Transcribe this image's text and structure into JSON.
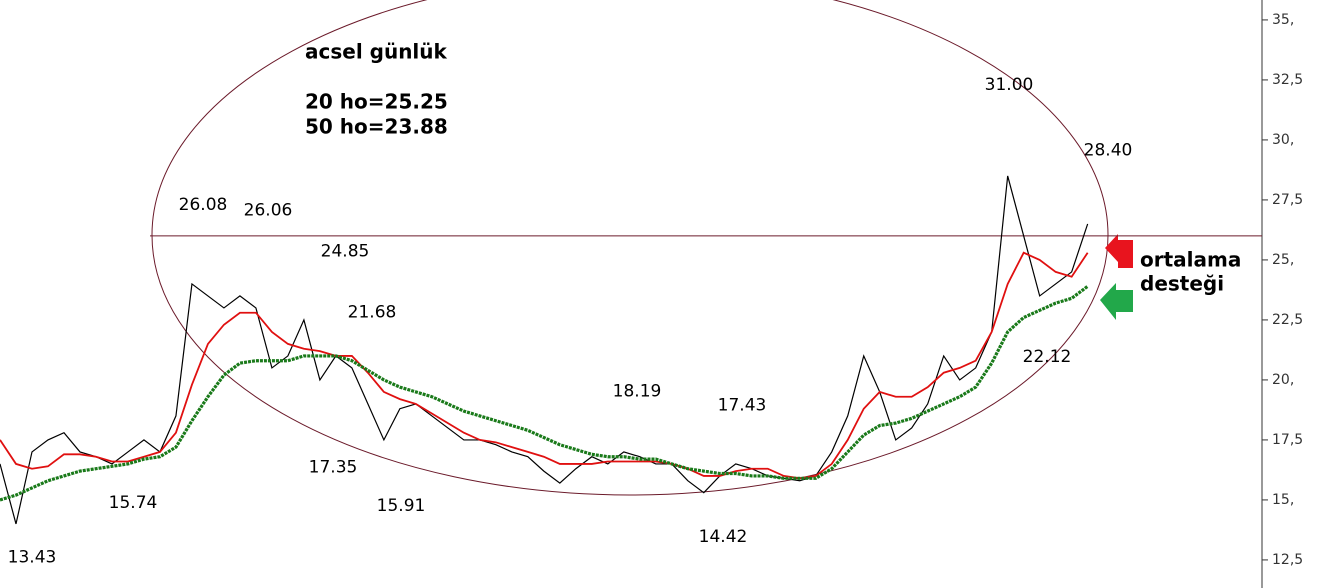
{
  "chart_data": {
    "type": "line",
    "title": "acsel günlük",
    "legend_texts": [
      "20 ho=25.25",
      "50 ho=23.88"
    ],
    "side_note": [
      "ortalama",
      "desteği"
    ],
    "x": [
      0,
      1,
      2,
      3,
      4,
      5,
      6,
      7,
      8,
      9,
      10,
      11,
      12,
      13,
      14,
      15,
      16,
      17,
      18,
      19,
      20,
      21,
      22,
      23,
      24,
      25,
      26,
      27,
      28,
      29,
      30,
      31,
      32,
      33,
      34,
      35,
      36,
      37,
      38,
      39,
      40,
      41,
      42,
      43,
      44,
      45,
      46,
      47,
      48,
      49,
      50,
      51,
      52,
      53,
      54,
      55,
      56,
      57,
      58,
      59,
      60,
      61,
      62,
      63,
      64,
      65,
      66,
      67,
      68
    ],
    "xlim": [
      0,
      78.9
    ],
    "ylim": [
      11.33,
      35.83
    ],
    "yticks": [
      {
        "value": 12.5,
        "label": "12,5"
      },
      {
        "value": 15,
        "label": "15,"
      },
      {
        "value": 17.5,
        "label": "17,5"
      },
      {
        "value": 20,
        "label": "20,"
      },
      {
        "value": 22.5,
        "label": "22,5"
      },
      {
        "value": 25,
        "label": "25,"
      },
      {
        "value": 27.5,
        "label": "27,5"
      },
      {
        "value": 30,
        "label": "30,"
      },
      {
        "value": 32.5,
        "label": "32,5"
      },
      {
        "value": 35,
        "label": "35,"
      }
    ],
    "series": [
      {
        "color": "#000000",
        "values": [
          16.5,
          14.0,
          17.0,
          17.5,
          17.8,
          17.0,
          16.8,
          16.5,
          17.0,
          17.5,
          17.0,
          18.5,
          24.0,
          23.5,
          23.0,
          23.5,
          23.0,
          20.5,
          21.0,
          22.5,
          20.0,
          21.0,
          20.5,
          19.0,
          17.5,
          18.8,
          19.0,
          18.5,
          18.0,
          17.5,
          17.5,
          17.3,
          17.0,
          16.8,
          16.2,
          15.7,
          16.3,
          16.8,
          16.5,
          17.0,
          16.8,
          16.5,
          16.5,
          15.8,
          15.3,
          16.0,
          16.5,
          16.3,
          16.0,
          15.9,
          15.8,
          16.0,
          17.0,
          18.5,
          21.0,
          19.5,
          17.5,
          18.0,
          19.0,
          21.0,
          20.0,
          20.5,
          22.0,
          28.5,
          26.0,
          23.5,
          24.0,
          24.5,
          26.5
        ]
      },
      {
        "color": "#e01010",
        "values": [
          17.5,
          16.5,
          16.3,
          16.4,
          16.9,
          16.9,
          16.8,
          16.6,
          16.6,
          16.8,
          17.0,
          17.8,
          19.8,
          21.5,
          22.3,
          22.8,
          22.8,
          22.0,
          21.5,
          21.3,
          21.2,
          21.0,
          21.0,
          20.3,
          19.5,
          19.2,
          19.0,
          18.6,
          18.2,
          17.8,
          17.5,
          17.4,
          17.2,
          17.0,
          16.8,
          16.5,
          16.5,
          16.5,
          16.6,
          16.6,
          16.6,
          16.6,
          16.5,
          16.3,
          16.0,
          16.0,
          16.2,
          16.3,
          16.3,
          16.0,
          15.9,
          16.0,
          16.5,
          17.5,
          18.8,
          19.5,
          19.3,
          19.3,
          19.7,
          20.3,
          20.5,
          20.8,
          22.0,
          24.0,
          25.3,
          25.0,
          24.5,
          24.3,
          25.3
        ]
      },
      {
        "color": "#1a7a1a",
        "values": [
          15.0,
          15.2,
          15.5,
          15.8,
          16.0,
          16.2,
          16.3,
          16.4,
          16.5,
          16.7,
          16.8,
          17.2,
          18.3,
          19.3,
          20.2,
          20.7,
          20.8,
          20.8,
          20.8,
          21.0,
          21.0,
          21.0,
          20.8,
          20.4,
          20.0,
          19.7,
          19.5,
          19.3,
          19.0,
          18.7,
          18.5,
          18.3,
          18.1,
          17.9,
          17.6,
          17.3,
          17.1,
          16.9,
          16.8,
          16.8,
          16.7,
          16.7,
          16.5,
          16.3,
          16.2,
          16.1,
          16.1,
          16.0,
          16.0,
          15.9,
          15.9,
          15.9,
          16.3,
          17.0,
          17.7,
          18.1,
          18.2,
          18.4,
          18.7,
          19.0,
          19.3,
          19.7,
          20.7,
          22.0,
          22.6,
          22.9,
          23.2,
          23.4,
          23.9
        ]
      }
    ],
    "hline": 26.0,
    "annotations": [
      {
        "value": 13.43,
        "label": "13.43"
      },
      {
        "value": 15.74,
        "label": "15.74"
      },
      {
        "value": 26.08,
        "label": "26.08"
      },
      {
        "value": 26.06,
        "label": "26.06"
      },
      {
        "value": 24.85,
        "label": "24.85"
      },
      {
        "value": 21.68,
        "label": "21.68"
      },
      {
        "value": 17.35,
        "label": "17.35"
      },
      {
        "value": 15.91,
        "label": "15.91"
      },
      {
        "value": 18.19,
        "label": "18.19"
      },
      {
        "value": 17.43,
        "label": "17.43"
      },
      {
        "value": 14.42,
        "label": "14.42"
      },
      {
        "value": 31.0,
        "label": "31.00"
      },
      {
        "value": 28.4,
        "label": "28.40"
      },
      {
        "value": 22.12,
        "label": "22.12"
      }
    ]
  }
}
